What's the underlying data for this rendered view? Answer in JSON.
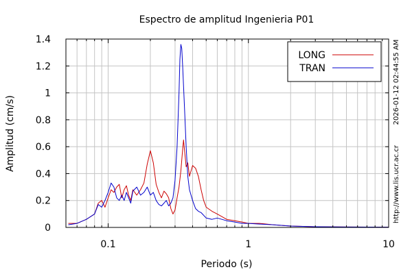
{
  "chart_data": {
    "type": "line",
    "title": "Espectro de amplitud Ingenieria P01",
    "xlabel": "Periodo (s)",
    "ylabel": "Amplitud (cm/s)",
    "x_scale": "log",
    "xlim": [
      0.05,
      10
    ],
    "ylim": [
      0,
      1.4
    ],
    "x_ticks": [
      {
        "value": 0.1,
        "label": "0.1"
      },
      {
        "value": 1,
        "label": "1"
      },
      {
        "value": 10,
        "label": "10"
      }
    ],
    "y_ticks": [
      {
        "value": 0,
        "label": "0"
      },
      {
        "value": 0.2,
        "label": "0.2"
      },
      {
        "value": 0.4,
        "label": "0.4"
      },
      {
        "value": 0.6,
        "label": "0.6"
      },
      {
        "value": 0.8,
        "label": "0.8"
      },
      {
        "value": 1,
        "label": "1"
      },
      {
        "value": 1.2,
        "label": "1.2"
      },
      {
        "value": 1.4,
        "label": "1.4"
      }
    ],
    "grid": true,
    "legend_position": "top-right",
    "series": [
      {
        "name": "LONG",
        "color": "#cc0000",
        "points": [
          [
            0.052,
            0.03
          ],
          [
            0.06,
            0.03
          ],
          [
            0.07,
            0.06
          ],
          [
            0.08,
            0.1
          ],
          [
            0.085,
            0.18
          ],
          [
            0.09,
            0.2
          ],
          [
            0.095,
            0.15
          ],
          [
            0.1,
            0.22
          ],
          [
            0.105,
            0.28
          ],
          [
            0.11,
            0.26
          ],
          [
            0.115,
            0.3
          ],
          [
            0.12,
            0.32
          ],
          [
            0.125,
            0.22
          ],
          [
            0.13,
            0.28
          ],
          [
            0.135,
            0.31
          ],
          [
            0.14,
            0.24
          ],
          [
            0.145,
            0.2
          ],
          [
            0.15,
            0.28
          ],
          [
            0.16,
            0.24
          ],
          [
            0.17,
            0.28
          ],
          [
            0.18,
            0.33
          ],
          [
            0.19,
            0.47
          ],
          [
            0.2,
            0.57
          ],
          [
            0.21,
            0.48
          ],
          [
            0.22,
            0.32
          ],
          [
            0.23,
            0.26
          ],
          [
            0.24,
            0.22
          ],
          [
            0.25,
            0.27
          ],
          [
            0.26,
            0.25
          ],
          [
            0.27,
            0.22
          ],
          [
            0.28,
            0.14
          ],
          [
            0.29,
            0.1
          ],
          [
            0.3,
            0.13
          ],
          [
            0.31,
            0.22
          ],
          [
            0.32,
            0.3
          ],
          [
            0.33,
            0.42
          ],
          [
            0.34,
            0.58
          ],
          [
            0.345,
            0.65
          ],
          [
            0.35,
            0.58
          ],
          [
            0.36,
            0.45
          ],
          [
            0.37,
            0.48
          ],
          [
            0.38,
            0.38
          ],
          [
            0.4,
            0.46
          ],
          [
            0.42,
            0.44
          ],
          [
            0.44,
            0.38
          ],
          [
            0.46,
            0.28
          ],
          [
            0.48,
            0.2
          ],
          [
            0.5,
            0.15
          ],
          [
            0.55,
            0.12
          ],
          [
            0.6,
            0.1
          ],
          [
            0.7,
            0.06
          ],
          [
            0.8,
            0.05
          ],
          [
            0.9,
            0.04
          ],
          [
            1,
            0.03
          ],
          [
            1.2,
            0.03
          ],
          [
            1.5,
            0.02
          ],
          [
            2,
            0.01
          ],
          [
            3,
            0.005
          ],
          [
            5,
            0.003
          ],
          [
            10,
            0.002
          ]
        ]
      },
      {
        "name": "TRAN",
        "color": "#0000cc",
        "points": [
          [
            0.052,
            0.02
          ],
          [
            0.06,
            0.03
          ],
          [
            0.07,
            0.06
          ],
          [
            0.08,
            0.1
          ],
          [
            0.085,
            0.17
          ],
          [
            0.09,
            0.15
          ],
          [
            0.095,
            0.2
          ],
          [
            0.1,
            0.26
          ],
          [
            0.105,
            0.33
          ],
          [
            0.11,
            0.3
          ],
          [
            0.115,
            0.22
          ],
          [
            0.12,
            0.2
          ],
          [
            0.125,
            0.24
          ],
          [
            0.13,
            0.2
          ],
          [
            0.135,
            0.26
          ],
          [
            0.14,
            0.22
          ],
          [
            0.145,
            0.18
          ],
          [
            0.15,
            0.27
          ],
          [
            0.16,
            0.3
          ],
          [
            0.17,
            0.24
          ],
          [
            0.18,
            0.26
          ],
          [
            0.19,
            0.3
          ],
          [
            0.2,
            0.24
          ],
          [
            0.21,
            0.26
          ],
          [
            0.22,
            0.2
          ],
          [
            0.23,
            0.17
          ],
          [
            0.24,
            0.16
          ],
          [
            0.25,
            0.18
          ],
          [
            0.26,
            0.2
          ],
          [
            0.27,
            0.16
          ],
          [
            0.28,
            0.18
          ],
          [
            0.29,
            0.22
          ],
          [
            0.3,
            0.35
          ],
          [
            0.31,
            0.6
          ],
          [
            0.32,
            1.0
          ],
          [
            0.325,
            1.25
          ],
          [
            0.33,
            1.36
          ],
          [
            0.335,
            1.33
          ],
          [
            0.34,
            1.2
          ],
          [
            0.35,
            0.9
          ],
          [
            0.36,
            0.6
          ],
          [
            0.37,
            0.38
          ],
          [
            0.38,
            0.28
          ],
          [
            0.4,
            0.2
          ],
          [
            0.42,
            0.14
          ],
          [
            0.44,
            0.12
          ],
          [
            0.46,
            0.11
          ],
          [
            0.5,
            0.07
          ],
          [
            0.55,
            0.06
          ],
          [
            0.6,
            0.07
          ],
          [
            0.7,
            0.05
          ],
          [
            0.8,
            0.04
          ],
          [
            0.9,
            0.03
          ],
          [
            1,
            0.03
          ],
          [
            1.2,
            0.025
          ],
          [
            1.5,
            0.02
          ],
          [
            2,
            0.01
          ],
          [
            3,
            0.005
          ],
          [
            5,
            0.003
          ],
          [
            10,
            0.002
          ]
        ]
      }
    ]
  },
  "side_texts": {
    "timestamp": "2026-01-12 02:44:55 AM",
    "url": "http://www.lis.ucr.ac.cr"
  }
}
